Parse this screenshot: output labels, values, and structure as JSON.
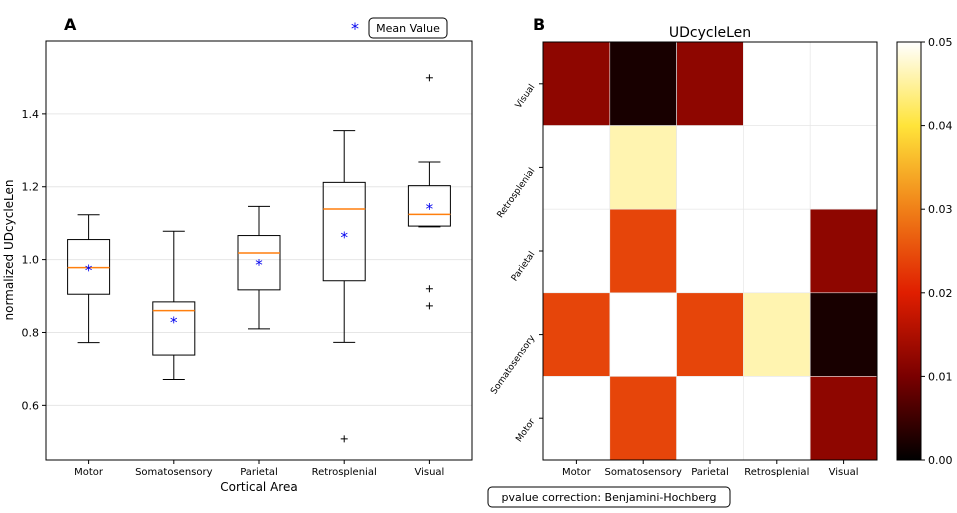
{
  "chart_data": [
    {
      "panel": "A",
      "type": "box",
      "title": "",
      "xlabel": "Cortical Area",
      "ylabel": "normalized UDcycleLen",
      "ylim": [
        0.45,
        1.6
      ],
      "yticks": [
        0.6,
        0.8,
        1.0,
        1.2,
        1.4
      ],
      "ytick_labels": [
        "0.6",
        "0.8",
        "1.0",
        "1.2",
        "1.4"
      ],
      "grid": true,
      "legend": {
        "label": "Mean Value",
        "marker": "*",
        "marker_color": "#0000ee",
        "location": "top-right"
      },
      "categories": [
        "Motor",
        "Somatosensory",
        "Parietal",
        "Retrosplenial",
        "Visual"
      ],
      "boxes": [
        {
          "category": "Motor",
          "whisker_low": 0.772,
          "q1": 0.905,
          "median": 0.978,
          "q3": 1.055,
          "whisker_high": 1.123,
          "mean": 0.973,
          "outliers": []
        },
        {
          "category": "Somatosensory",
          "whisker_low": 0.671,
          "q1": 0.738,
          "median": 0.86,
          "q3": 0.884,
          "whisker_high": 1.078,
          "mean": 0.83,
          "outliers": []
        },
        {
          "category": "Parietal",
          "whisker_low": 0.81,
          "q1": 0.917,
          "median": 1.018,
          "q3": 1.066,
          "whisker_high": 1.146,
          "mean": 0.988,
          "outliers": []
        },
        {
          "category": "Retrosplenial",
          "whisker_low": 0.773,
          "q1": 0.942,
          "median": 1.139,
          "q3": 1.212,
          "whisker_high": 1.354,
          "mean": 1.063,
          "outliers": [
            0.508
          ]
        },
        {
          "category": "Visual",
          "whisker_low": 1.09,
          "q1": 1.092,
          "median": 1.124,
          "q3": 1.203,
          "whisker_high": 1.268,
          "mean": 1.142,
          "outliers": [
            1.499,
            0.92,
            0.873
          ]
        }
      ],
      "colors": {
        "box": "#000000",
        "median": "#ff7f0e",
        "mean": "#0000ee",
        "grid": "#e6e6e6"
      }
    },
    {
      "panel": "B",
      "type": "heatmap",
      "title": "UDcycleLen",
      "x_categories": [
        "Motor",
        "Somatosensory",
        "Parietal",
        "Retrosplenial",
        "Visual"
      ],
      "y_categories_top_to_bottom": [
        "Visual",
        "Retrosplenial",
        "Parietal",
        "Somatosensory",
        "Motor"
      ],
      "values": [
        [
          0.012,
          0.002,
          0.012,
          null,
          null
        ],
        [
          null,
          0.046,
          null,
          null,
          null
        ],
        [
          null,
          0.024,
          null,
          null,
          0.012
        ],
        [
          0.024,
          null,
          0.024,
          0.046,
          0.002
        ],
        [
          null,
          0.024,
          null,
          null,
          0.012
        ]
      ],
      "null_color": "#ffffff",
      "colorbar": {
        "min": 0.0,
        "max": 0.05,
        "ticks": [
          0.0,
          0.01,
          0.02,
          0.03,
          0.04,
          0.05
        ],
        "tick_labels": [
          "0.00",
          "0.01",
          "0.02",
          "0.03",
          "0.04",
          "0.05"
        ],
        "colormap": "afmhot"
      },
      "annotation": "pvalue correction: Benjamini-Hochberg"
    }
  ],
  "panel_labels": {
    "a": "A",
    "b": "B"
  }
}
